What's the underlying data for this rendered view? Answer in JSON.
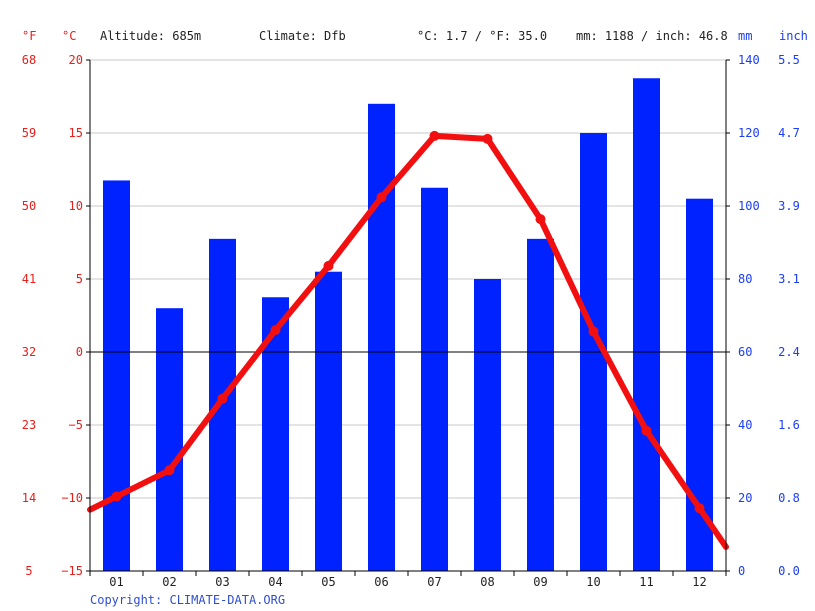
{
  "header": {
    "f_unit": "°F",
    "c_unit": "°C",
    "altitude": "Altitude: 685m",
    "climate": "Climate: Dfb",
    "temp_avg": "°C: 1.7 / °F: 35.0",
    "precip_total": "mm: 1188 / inch: 46.8",
    "mm_unit": "mm",
    "inch_unit": "inch"
  },
  "axes": {
    "fahrenheit_ticks": [
      "68",
      "59",
      "50",
      "41",
      "32",
      "23",
      "14",
      "5"
    ],
    "celsius_ticks": [
      "20",
      "15",
      "10",
      "5",
      "0",
      "−5",
      "−10",
      "−15"
    ],
    "mm_ticks": [
      "140",
      "120",
      "100",
      "80",
      "60",
      "40",
      "20",
      "0"
    ],
    "inch_ticks": [
      "5.5",
      "4.7",
      "3.9",
      "3.1",
      "2.4",
      "1.6",
      "0.8",
      "0.0"
    ]
  },
  "footer": {
    "copyright": "Copyright: CLIMATE-DATA.ORG"
  },
  "colors": {
    "temperature": "#f20f0f",
    "precipitation": "#0022ff",
    "grid": "#c8c8c8"
  },
  "chart_data": {
    "type": "bar+line",
    "categories": [
      "01",
      "02",
      "03",
      "04",
      "05",
      "06",
      "07",
      "08",
      "09",
      "10",
      "11",
      "12"
    ],
    "series": [
      {
        "kind": "bar",
        "axis": "mm",
        "values": [
          107,
          72,
          91,
          75,
          82,
          128,
          105,
          80,
          91,
          120,
          135,
          102
        ]
      },
      {
        "kind": "line",
        "axis": "celsius",
        "values": [
          -9.9,
          -8.1,
          -3.2,
          1.5,
          5.9,
          10.6,
          14.8,
          14.6,
          9.1,
          1.4,
          -5.4,
          -10.7
        ]
      }
    ],
    "celsius_range": [
      -15,
      20
    ],
    "mm_range": [
      0,
      140
    ],
    "grid": true
  }
}
